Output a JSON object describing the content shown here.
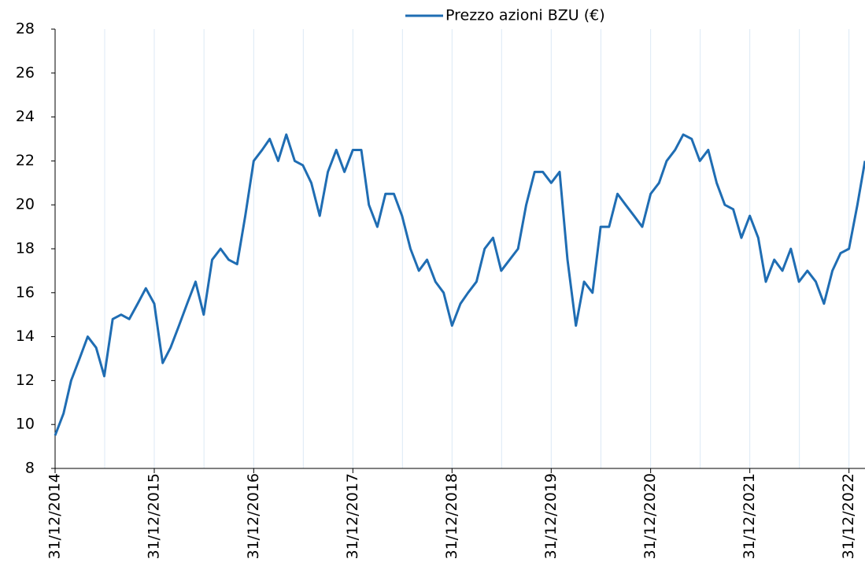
{
  "chart_data": {
    "type": "line",
    "x": [
      "31/12/2014",
      "31/01/2015",
      "28/02/2015",
      "31/03/2015",
      "30/04/2015",
      "31/05/2015",
      "30/06/2015",
      "31/07/2015",
      "31/08/2015",
      "30/09/2015",
      "31/10/2015",
      "30/11/2015",
      "31/12/2015",
      "31/01/2016",
      "29/02/2016",
      "31/03/2016",
      "30/04/2016",
      "31/05/2016",
      "30/06/2016",
      "31/07/2016",
      "31/08/2016",
      "30/09/2016",
      "31/10/2016",
      "30/11/2016",
      "31/12/2016",
      "31/01/2017",
      "28/02/2017",
      "31/03/2017",
      "30/04/2017",
      "31/05/2017",
      "30/06/2017",
      "31/07/2017",
      "31/08/2017",
      "30/09/2017",
      "31/10/2017",
      "30/11/2017",
      "31/12/2017",
      "31/01/2018",
      "28/02/2018",
      "31/03/2018",
      "30/04/2018",
      "31/05/2018",
      "30/06/2018",
      "31/07/2018",
      "31/08/2018",
      "30/09/2018",
      "31/10/2018",
      "30/11/2018",
      "31/12/2018",
      "31/01/2019",
      "28/02/2019",
      "31/03/2019",
      "30/04/2019",
      "31/05/2019",
      "30/06/2019",
      "31/07/2019",
      "31/08/2019",
      "30/09/2019",
      "31/10/2019",
      "30/11/2019",
      "31/12/2019",
      "31/01/2020",
      "29/02/2020",
      "31/03/2020",
      "30/04/2020",
      "31/05/2020",
      "30/06/2020",
      "31/07/2020",
      "31/08/2020",
      "30/09/2020",
      "31/10/2020",
      "30/11/2020",
      "31/12/2020",
      "31/01/2021",
      "28/02/2021",
      "31/03/2021",
      "30/04/2021",
      "31/05/2021",
      "30/06/2021",
      "31/07/2021",
      "31/08/2021",
      "30/09/2021",
      "31/10/2021",
      "30/11/2021",
      "31/12/2021",
      "31/01/2022",
      "28/02/2022",
      "31/03/2022",
      "30/04/2022",
      "31/05/2022",
      "30/06/2022",
      "31/07/2022",
      "31/08/2022",
      "30/09/2022",
      "31/10/2022",
      "30/11/2022",
      "31/12/2022",
      "31/01/2023",
      "28/02/2023"
    ],
    "series": [
      {
        "name": "Prezzo azioni BZU (€)",
        "color": "#1f6db3",
        "values": [
          9.5,
          10.5,
          12.0,
          13.0,
          14.0,
          13.5,
          12.2,
          14.8,
          15.0,
          14.8,
          15.5,
          16.2,
          15.5,
          12.8,
          13.5,
          14.5,
          15.5,
          16.5,
          15.0,
          17.5,
          18.0,
          17.5,
          17.3,
          19.5,
          22.0,
          22.5,
          23.0,
          22.0,
          23.2,
          22.0,
          21.8,
          21.0,
          19.5,
          21.5,
          22.5,
          21.5,
          22.5,
          22.5,
          20.0,
          19.0,
          20.5,
          20.5,
          19.5,
          18.0,
          17.0,
          17.5,
          16.5,
          16.0,
          14.5,
          15.5,
          16.0,
          16.5,
          18.0,
          18.5,
          17.0,
          17.5,
          18.0,
          20.0,
          21.5,
          21.5,
          21.0,
          21.5,
          17.5,
          14.5,
          16.5,
          16.0,
          19.0,
          19.0,
          20.5,
          20.0,
          19.5,
          19.0,
          20.5,
          21.0,
          22.0,
          22.5,
          23.2,
          23.0,
          22.0,
          22.5,
          21.0,
          20.0,
          19.8,
          18.5,
          19.5,
          18.5,
          16.5,
          17.5,
          17.0,
          18.0,
          16.5,
          17.0,
          16.5,
          15.5,
          17.0,
          17.8,
          18.0,
          20.0,
          22.0
        ]
      }
    ],
    "xlim": [
      "31/12/2014",
      "28/02/2023"
    ],
    "xticks": [
      "31/12/2014",
      "31/12/2015",
      "31/12/2016",
      "31/12/2017",
      "31/12/2018",
      "31/12/2019",
      "31/12/2020",
      "31/12/2021",
      "31/12/2022"
    ],
    "ylim": [
      8,
      28
    ],
    "yticks": [
      8,
      10,
      12,
      14,
      16,
      18,
      20,
      22,
      24,
      26,
      28
    ],
    "grid": true,
    "legend": "top"
  }
}
